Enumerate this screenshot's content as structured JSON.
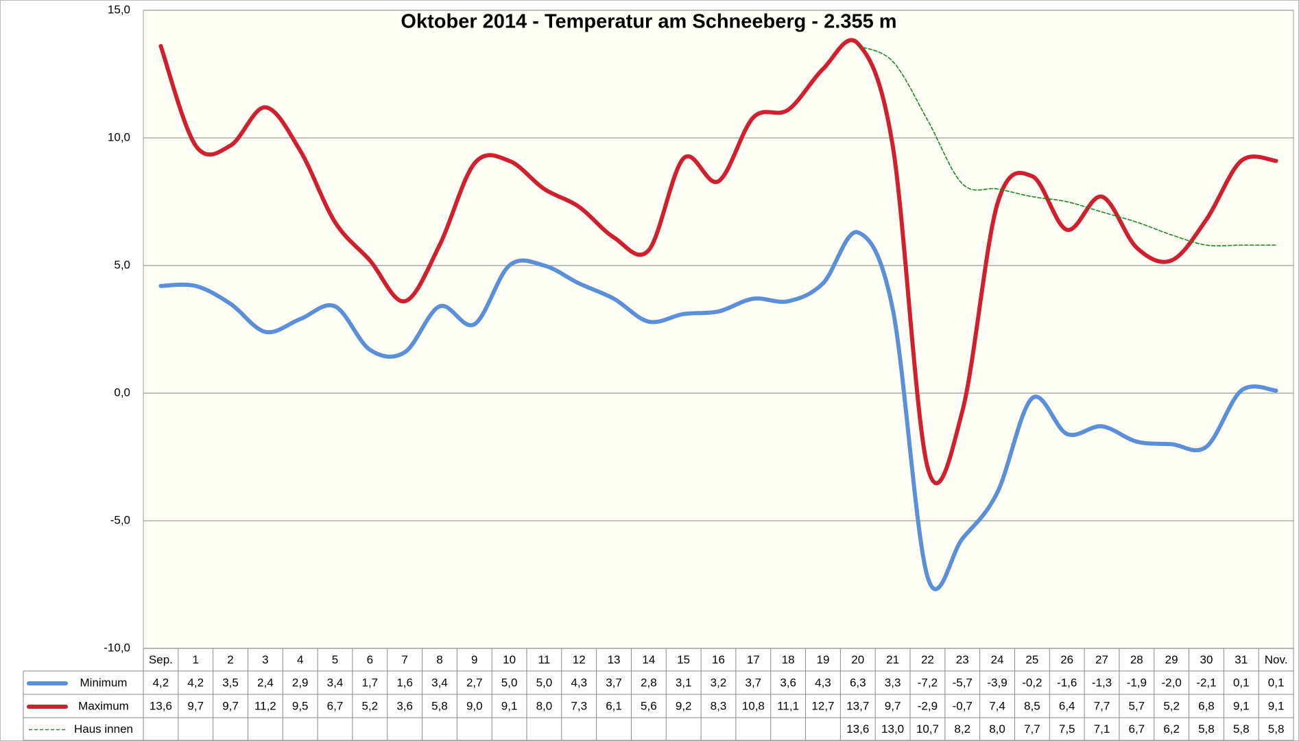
{
  "chart_data": {
    "type": "line",
    "title": "Oktober 2014 - Temperatur am Schneeberg - 2.355 m",
    "categories": [
      "Sep.",
      "1",
      "2",
      "3",
      "4",
      "5",
      "6",
      "7",
      "8",
      "9",
      "10",
      "11",
      "12",
      "13",
      "14",
      "15",
      "16",
      "17",
      "18",
      "19",
      "20",
      "21",
      "22",
      "23",
      "24",
      "25",
      "26",
      "27",
      "28",
      "29",
      "30",
      "31",
      "Nov."
    ],
    "series": [
      {
        "name": "Minimum",
        "color": "#5b8fd8",
        "dashed": false,
        "values": [
          4.2,
          4.2,
          3.5,
          2.4,
          2.9,
          3.4,
          1.7,
          1.6,
          3.4,
          2.7,
          5.0,
          5.0,
          4.3,
          3.7,
          2.8,
          3.1,
          3.2,
          3.7,
          3.6,
          4.3,
          6.3,
          3.3,
          -7.2,
          -5.7,
          -3.9,
          -0.2,
          -1.6,
          -1.3,
          -1.9,
          -2.0,
          -2.1,
          0.1,
          0.1
        ],
        "value_labels": [
          "4,2",
          "4,2",
          "3,5",
          "2,4",
          "2,9",
          "3,4",
          "1,7",
          "1,6",
          "3,4",
          "2,7",
          "5,0",
          "5,0",
          "4,3",
          "3,7",
          "2,8",
          "3,1",
          "3,2",
          "3,7",
          "3,6",
          "4,3",
          "6,3",
          "3,3",
          "-7,2",
          "-5,7",
          "-3,9",
          "-0,2",
          "-1,6",
          "-1,3",
          "-1,9",
          "-2,0",
          "-2,1",
          "0,1",
          "0,1"
        ]
      },
      {
        "name": "Maximum",
        "color": "#d0202d",
        "dashed": false,
        "values": [
          13.6,
          9.7,
          9.7,
          11.2,
          9.5,
          6.7,
          5.2,
          3.6,
          5.8,
          9.0,
          9.1,
          8.0,
          7.3,
          6.1,
          5.6,
          9.2,
          8.3,
          10.8,
          11.1,
          12.7,
          13.7,
          9.7,
          -2.9,
          -0.7,
          7.4,
          8.5,
          6.4,
          7.7,
          5.7,
          5.2,
          6.8,
          9.1,
          9.1
        ],
        "value_labels": [
          "13,6",
          "9,7",
          "9,7",
          "11,2",
          "9,5",
          "6,7",
          "5,2",
          "3,6",
          "5,8",
          "9,0",
          "9,1",
          "8,0",
          "7,3",
          "6,1",
          "5,6",
          "9,2",
          "8,3",
          "10,8",
          "11,1",
          "12,7",
          "13,7",
          "9,7",
          "-2,9",
          "-0,7",
          "7,4",
          "8,5",
          "6,4",
          "7,7",
          "5,7",
          "5,2",
          "6,8",
          "9,1",
          "9,1"
        ]
      },
      {
        "name": "Haus innen",
        "color": "#1a8a1a",
        "dashed": true,
        "values": [
          null,
          null,
          null,
          null,
          null,
          null,
          null,
          null,
          null,
          null,
          null,
          null,
          null,
          null,
          null,
          null,
          null,
          null,
          null,
          null,
          13.6,
          13.0,
          10.7,
          8.2,
          8.0,
          7.7,
          7.5,
          7.1,
          6.7,
          6.2,
          5.8,
          5.8,
          5.8
        ],
        "value_labels": [
          null,
          null,
          null,
          null,
          null,
          null,
          null,
          null,
          null,
          null,
          null,
          null,
          null,
          null,
          null,
          null,
          null,
          null,
          null,
          null,
          "13,6",
          "13,0",
          "10,7",
          "8,2",
          "8,0",
          "7,7",
          "7,5",
          "7,1",
          "6,7",
          "6,2",
          "5,8",
          "5,8",
          "5,8"
        ]
      }
    ],
    "ylim": [
      -10,
      15
    ],
    "yticks": [
      {
        "value": -10,
        "label": "-10,0"
      },
      {
        "value": -5,
        "label": "-5,0"
      },
      {
        "value": 0,
        "label": "0,0"
      },
      {
        "value": 5,
        "label": "5,0"
      },
      {
        "value": 10,
        "label": "10,0"
      },
      {
        "value": 15,
        "label": "15,0"
      }
    ],
    "grid": true
  }
}
